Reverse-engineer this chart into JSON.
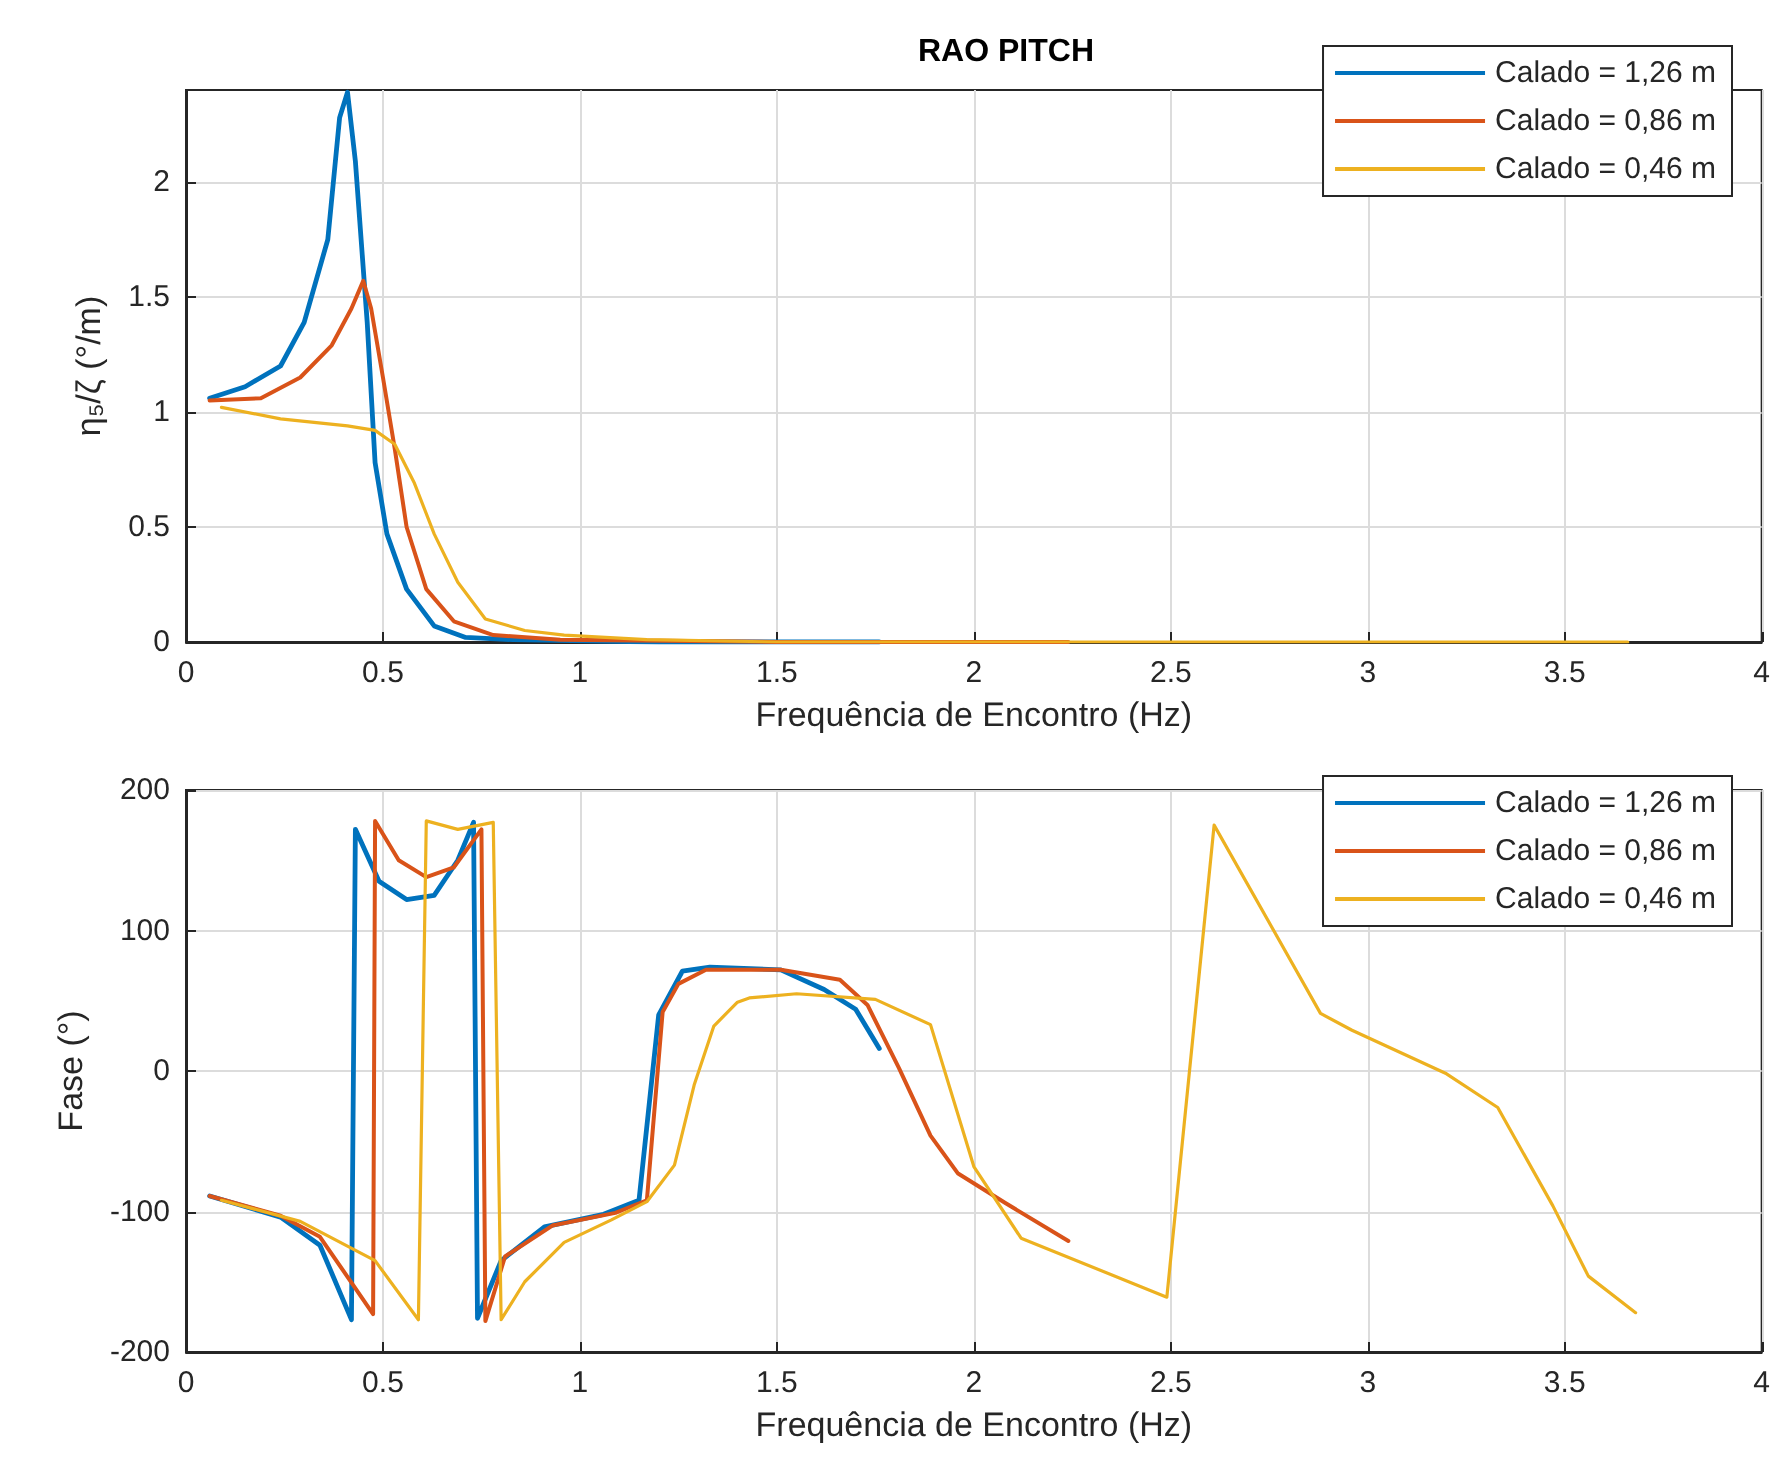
{
  "chart_data": [
    {
      "type": "line",
      "title": "RAO PITCH",
      "xlabel": "Frequência de Encontro (Hz)",
      "ylabel": "η₅/ζ (°/m)",
      "xlim": [
        0,
        4
      ],
      "xticks": [
        0,
        0.5,
        1,
        1.5,
        2,
        2.5,
        3,
        3.5,
        4
      ],
      "ylim": [
        0,
        2.4
      ],
      "yticks": [
        0,
        0.5,
        1,
        1.5,
        2
      ],
      "grid": true,
      "legend": "top right",
      "marker": "none",
      "line_style": "solid",
      "series": [
        {
          "name": "Calado = 1,26 m",
          "color": "#0072bd",
          "x": [
            0.06,
            0.15,
            0.24,
            0.3,
            0.36,
            0.39,
            0.41,
            0.43,
            0.46,
            0.48,
            0.51,
            0.56,
            0.63,
            0.71,
            0.83,
            1.2,
            1.76
          ],
          "values": [
            1.06,
            1.11,
            1.2,
            1.39,
            1.75,
            2.28,
            2.39,
            2.09,
            1.39,
            0.78,
            0.47,
            0.23,
            0.07,
            0.02,
            0.01,
            0,
            0
          ]
        },
        {
          "name": "Calado = 0,86 m",
          "color": "#d95319",
          "x": [
            0.06,
            0.19,
            0.29,
            0.37,
            0.42,
            0.45,
            0.47,
            0.5,
            0.53,
            0.56,
            0.61,
            0.68,
            0.78,
            0.95,
            1.5,
            2.24
          ],
          "values": [
            1.05,
            1.06,
            1.15,
            1.29,
            1.45,
            1.57,
            1.45,
            1.15,
            0.84,
            0.5,
            0.23,
            0.09,
            0.03,
            0.01,
            0,
            0
          ]
        },
        {
          "name": "Calado = 0,46 m",
          "color": "#edb120",
          "x": [
            0.09,
            0.24,
            0.41,
            0.48,
            0.53,
            0.58,
            0.63,
            0.69,
            0.76,
            0.86,
            0.96,
            1.17,
            1.5,
            2.5,
            3.66
          ],
          "values": [
            1.02,
            0.97,
            0.94,
            0.92,
            0.86,
            0.69,
            0.47,
            0.26,
            0.1,
            0.05,
            0.03,
            0.01,
            0,
            0,
            0
          ]
        }
      ]
    },
    {
      "type": "line",
      "xlabel": "Frequência de Encontro (Hz)",
      "ylabel": "Fase (°)",
      "xlim": [
        0,
        4
      ],
      "xticks": [
        0,
        0.5,
        1,
        1.5,
        2,
        2.5,
        3,
        3.5,
        4
      ],
      "ylim": [
        -200,
        200
      ],
      "yticks": [
        -200,
        -100,
        0,
        100,
        200
      ],
      "grid": true,
      "legend": "top right",
      "marker": "none",
      "line_style": "solid",
      "series": [
        {
          "name": "Calado = 1,26 m",
          "color": "#0072bd",
          "x": [
            0.06,
            0.24,
            0.34,
            0.42,
            0.43,
            0.49,
            0.56,
            0.63,
            0.69,
            0.73,
            0.74,
            0.8,
            0.91,
            1.06,
            1.15,
            1.2,
            1.26,
            1.33,
            1.51,
            1.62,
            1.7,
            1.76
          ],
          "values": [
            -89,
            -104,
            -124,
            -177,
            172,
            135,
            122,
            125,
            150,
            177,
            -176,
            -135,
            -111,
            -102,
            -92,
            40,
            71,
            74,
            72,
            58,
            44,
            16
          ]
        },
        {
          "name": "Calado = 0,86 m",
          "color": "#d95319",
          "x": [
            0.06,
            0.24,
            0.34,
            0.475,
            0.48,
            0.54,
            0.61,
            0.68,
            0.75,
            0.76,
            0.81,
            0.93,
            1.09,
            1.17,
            1.21,
            1.25,
            1.32,
            1.51,
            1.66,
            1.73,
            1.81,
            1.89,
            1.96,
            2.08,
            2.24
          ],
          "values": [
            -89,
            -103,
            -118,
            -173,
            178,
            150,
            138,
            145,
            172,
            -178,
            -132,
            -110,
            -101,
            -92,
            42,
            62,
            72,
            72,
            65,
            47,
            2,
            -46,
            -73,
            -94,
            -121
          ]
        },
        {
          "name": "Calado = 0,46 m",
          "color": "#edb120",
          "x": [
            0.09,
            0.29,
            0.48,
            0.59,
            0.61,
            0.69,
            0.78,
            0.8,
            0.86,
            0.96,
            1.08,
            1.17,
            1.24,
            1.29,
            1.34,
            1.4,
            1.43,
            1.55,
            1.75,
            1.89,
            2.0,
            2.12,
            2.49,
            2.61,
            2.88,
            2.96,
            3.2,
            3.33,
            3.47,
            3.56,
            3.68
          ],
          "values": [
            -92,
            -107,
            -135,
            -177,
            178,
            172,
            177,
            -177,
            -150,
            -122,
            -106,
            -93,
            -67,
            -10,
            32,
            49,
            52,
            55,
            51,
            33,
            -68,
            -119,
            -161,
            175,
            41,
            29,
            -2,
            -26,
            -96,
            -146,
            -172
          ]
        }
      ]
    }
  ]
}
